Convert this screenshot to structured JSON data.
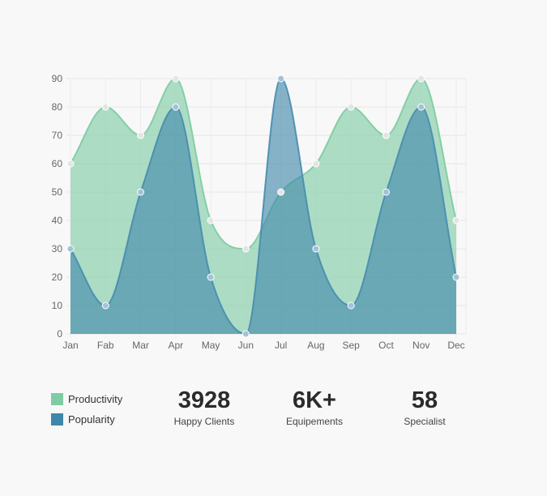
{
  "chart_data": {
    "type": "area",
    "categories": [
      "Jan",
      "Fab",
      "Mar",
      "Apr",
      "May",
      "Jun",
      "Jul",
      "Aug",
      "Sep",
      "Oct",
      "Nov",
      "Dec"
    ],
    "series": [
      {
        "name": "Productivity",
        "values": [
          60,
          80,
          70,
          90,
          40,
          30,
          50,
          60,
          80,
          70,
          90,
          40
        ],
        "color": "#7fcca4"
      },
      {
        "name": "Popularity",
        "values": [
          30,
          10,
          50,
          80,
          20,
          0,
          90,
          30,
          10,
          50,
          80,
          20
        ],
        "color": "#3f87aa"
      }
    ],
    "yticks": [
      0,
      10,
      20,
      30,
      40,
      50,
      60,
      70,
      80,
      90
    ],
    "ylim": [
      0,
      90
    ],
    "grid": true,
    "legend_position": "bottom-left"
  },
  "legend": [
    {
      "label": "Productivity",
      "color": "#7fcca4"
    },
    {
      "label": "Popularity",
      "color": "#3f87aa"
    }
  ],
  "stats": [
    {
      "value": "3928",
      "label": "Happy Clients"
    },
    {
      "value": "6K+",
      "label": "Equipements"
    },
    {
      "value": "58",
      "label": "Specialist"
    }
  ]
}
